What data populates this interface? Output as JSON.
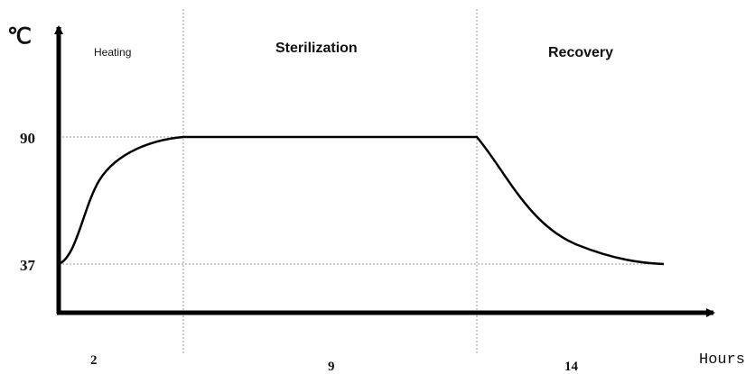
{
  "y_axis": {
    "label": "℃",
    "levels": [
      "90",
      "37"
    ]
  },
  "x_axis": {
    "label": "Hours"
  },
  "phases": [
    {
      "name": "Heating",
      "duration": "2"
    },
    {
      "name": "Sterilization",
      "duration": "9"
    },
    {
      "name": "Recovery",
      "duration": "14"
    }
  ]
}
